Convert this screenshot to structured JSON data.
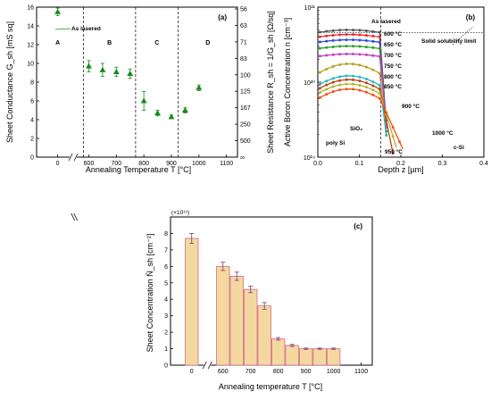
{
  "chart_data": [
    {
      "type": "scatter",
      "panel_label": "(a)",
      "xlabel": "Annealing Temperature T [°C]",
      "ylabel": "Sheet Conductance G_sh [mS sq]",
      "y2label": "Sheet Resistance R_sh = 1/G_sh [Ω/sq]",
      "x_ticks": [
        "0",
        "600",
        "700",
        "800",
        "900",
        "1000",
        "1100"
      ],
      "y_ticks": [
        "0",
        "2",
        "4",
        "6",
        "8",
        "10",
        "12",
        "14",
        "16"
      ],
      "y2_ticks": [
        "∞",
        "500",
        "250",
        "167",
        "125",
        "100",
        "83",
        "71",
        "63",
        "56"
      ],
      "xlim": [
        0,
        1100
      ],
      "ylim": [
        0,
        16
      ],
      "x_axis_break": true,
      "series": [
        {
          "x": [
            0,
            600,
            650,
            700,
            750,
            800,
            850,
            900,
            950,
            1000
          ],
          "y": [
            15.5,
            9.7,
            9.3,
            9.1,
            8.9,
            6.0,
            4.7,
            4.3,
            5.0,
            7.4
          ],
          "err": [
            0.4,
            0.6,
            0.7,
            0.5,
            0.5,
            1.0,
            0.3,
            0.2,
            0.3,
            0.3
          ],
          "color": "#1a8a1a"
        }
      ],
      "regions": [
        "A",
        "B",
        "C",
        "D"
      ],
      "region_boundaries": [
        580,
        770,
        925
      ],
      "annotations": [
        "As lasered"
      ]
    },
    {
      "type": "scatter",
      "panel_label": "(b)",
      "xlabel": "Depth z [µm]",
      "ylabel": "Active Boron Concentration n [cm⁻³]",
      "x_ticks": [
        "0.0",
        "0.1",
        "0.2",
        "0.3",
        "0.4"
      ],
      "y_ticks": [
        "10¹⁹",
        "10²⁰",
        "10²¹"
      ],
      "xlim": [
        0,
        0.4
      ],
      "ylim": [
        1e+19,
        1e+21
      ],
      "y_scale": "log",
      "series": [
        {
          "name": "As lasered",
          "color": "#555555"
        },
        {
          "name": "600 °C",
          "color": "#e8282b"
        },
        {
          "name": "650 °C",
          "color": "#2c4bd8"
        },
        {
          "name": "700 °C",
          "color": "#2aa02a"
        },
        {
          "name": "750 °C",
          "color": "#c03cc8"
        },
        {
          "name": "800 °C",
          "color": "#b8a020"
        },
        {
          "name": "850 °C",
          "color": "#20b8c8"
        },
        {
          "name": "900 °C",
          "color": "#c04010"
        },
        {
          "name": "950 °C",
          "color": "#b8b030"
        },
        {
          "name": "1000 °C",
          "color": "#f05018"
        }
      ],
      "annotations": [
        "Solid solubility limit",
        "SiO₂",
        "poly Si",
        "c-Si"
      ]
    },
    {
      "type": "bar",
      "panel_label": "(c)",
      "xlabel": "Annealing temperature T [°C]",
      "ylabel": "Sheet Concentration N̄_sh [cm⁻²]",
      "y_multiplier": "(×10¹⁵)",
      "x_ticks": [
        "0",
        "600",
        "700",
        "800",
        "900",
        "1000",
        "1100"
      ],
      "y_ticks": [
        "0",
        "1",
        "2",
        "3",
        "4",
        "5",
        "6",
        "7",
        "8"
      ],
      "xlim": [
        0,
        1100
      ],
      "ylim": [
        0,
        9
      ],
      "x_axis_break": true,
      "x": [
        0,
        600,
        650,
        700,
        750,
        800,
        850,
        900,
        950,
        1000
      ],
      "values": [
        7.7,
        6.0,
        5.4,
        4.6,
        3.6,
        1.6,
        1.2,
        1.0,
        1.0,
        1.0
      ],
      "err": [
        0.3,
        0.25,
        0.25,
        0.2,
        0.2,
        0.08,
        0.06,
        0.04,
        0.04,
        0.04
      ],
      "bar_color": "#f3d9a0",
      "edge_color": "#d86a8a"
    }
  ],
  "b_labels": {
    "as_lasered": "As lasered",
    "t600": "600 °C",
    "t650": "650 °C",
    "t700": "700 °C",
    "t750": "750 °C",
    "t800": "800 °C",
    "t850": "850 °C",
    "t900": "900 °C",
    "t950": "950 °C",
    "t1000": "1000 °C",
    "solubility": "Solid solubility limit",
    "sio2": "SiO₂",
    "polysi": "poly Si",
    "csi": "c-Si"
  }
}
